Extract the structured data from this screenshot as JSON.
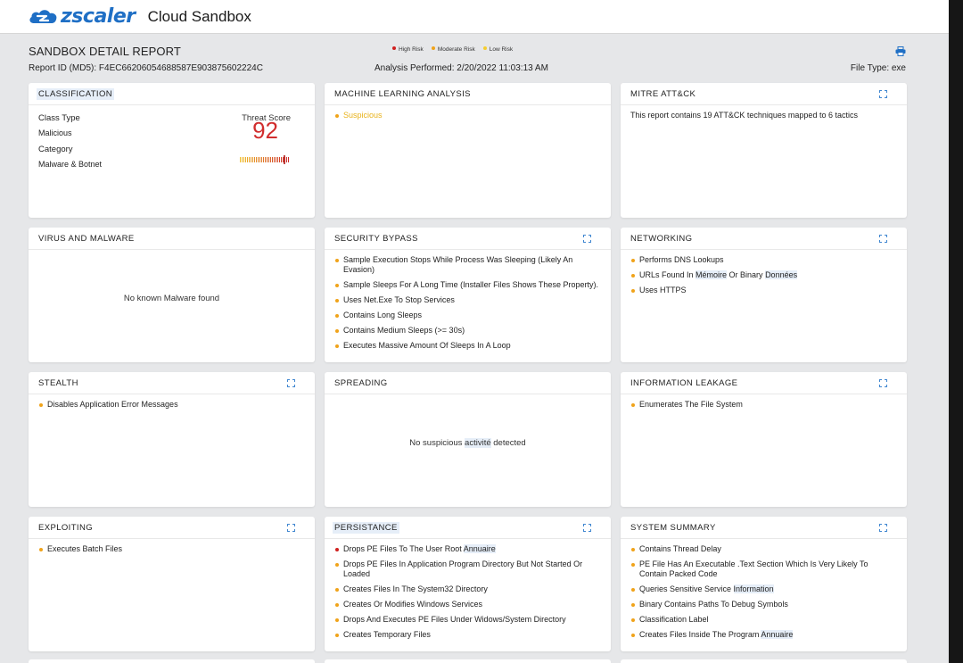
{
  "app": {
    "brand": "zscaler",
    "title": "Cloud Sandbox"
  },
  "report": {
    "title": "SANDBOX DETAIL REPORT",
    "report_id": "Report ID (MD5): F4EC66206054688587E903875602224C",
    "legend": [
      {
        "label": "High Risk",
        "color": "#d0201f"
      },
      {
        "label": "Moderate Risk",
        "color": "#f0a31a"
      },
      {
        "label": "Low Risk",
        "color": "#f5cd2e"
      }
    ],
    "analysis": "Analysis Performed: 2/20/2022 11:03:13 AM",
    "file_type": "File Type: exe"
  },
  "cards": {
    "classification": {
      "title": "CLASSIFICATION",
      "class_type_label": "Class Type",
      "class_type": "Malicious",
      "category_label": "Category",
      "category": "Malware & Botnet",
      "threat_label": "Threat Score",
      "threat_score": "92"
    },
    "ml": {
      "title": "MACHINE LEARNING ANALYSIS",
      "result": "Suspicious"
    },
    "mitre": {
      "title": "MITRE ATT&CK",
      "text": "This report contains 19 ATT&CK techniques mapped to 6 tactics"
    },
    "virus": {
      "title": "VIRUS AND MALWARE",
      "message": "No known Malware found"
    },
    "bypass": {
      "title": "SECURITY BYPASS",
      "items": [
        "Sample Execution Stops While Process Was Sleeping (Likely An Evasion)",
        "Sample Sleeps For A Long Time (Installer Files Shows These Property).",
        "Uses Net.Exe To Stop Services",
        "Contains Long Sleeps",
        "Contains Medium Sleeps (>= 30s)",
        "Executes Massive Amount Of Sleeps In A Loop"
      ]
    },
    "networking": {
      "title": "NETWORKING",
      "item1": "Performs DNS Lookups",
      "item2_a": "URLs Found In ",
      "item2_b": "Mémoire",
      "item2_c": " Or Binary ",
      "item2_d": "Données",
      "item3": "Uses HTTPS"
    },
    "stealth": {
      "title": "STEALTH",
      "items": [
        "Disables Application Error Messages"
      ]
    },
    "spreading": {
      "title": "SPREADING",
      "msg_a": "No suspicious ",
      "msg_b": "activité",
      "msg_c": " detected"
    },
    "leakage": {
      "title": "INFORMATION LEAKAGE",
      "items": [
        "Enumerates The File System"
      ]
    },
    "exploiting": {
      "title": "EXPLOITING",
      "items": [
        "Executes Batch Files"
      ]
    },
    "persistance": {
      "title": "PERSISTANCE",
      "item1_a": "Drops PE Files To The User Root ",
      "item1_b": "Annuaire",
      "items": [
        "Drops PE Files In Application Program Directory But Not Started Or Loaded",
        "Creates Files In The System32 Directory",
        "Creates Or Modifies Windows Services",
        "Drops And Executes PE Files Under Widows/System Directory",
        "Creates Temporary Files"
      ]
    },
    "summary": {
      "title": "SYSTEM SUMMARY",
      "item1": "Contains Thread Delay",
      "item2": "PE File Has An Executable .Text Section Which Is Very Likely To Contain Packed Code",
      "item3_a": "Queries Sensitive Service ",
      "item3_b": "Information",
      "item4": "Binary Contains Paths To Debug Symbols",
      "item5": "Classification Label",
      "item6_a": "Creates Files Inside The Program ",
      "item6_b": "Annuaire"
    }
  },
  "icons": {
    "print": "printer-icon",
    "expand": "expand-icon"
  }
}
